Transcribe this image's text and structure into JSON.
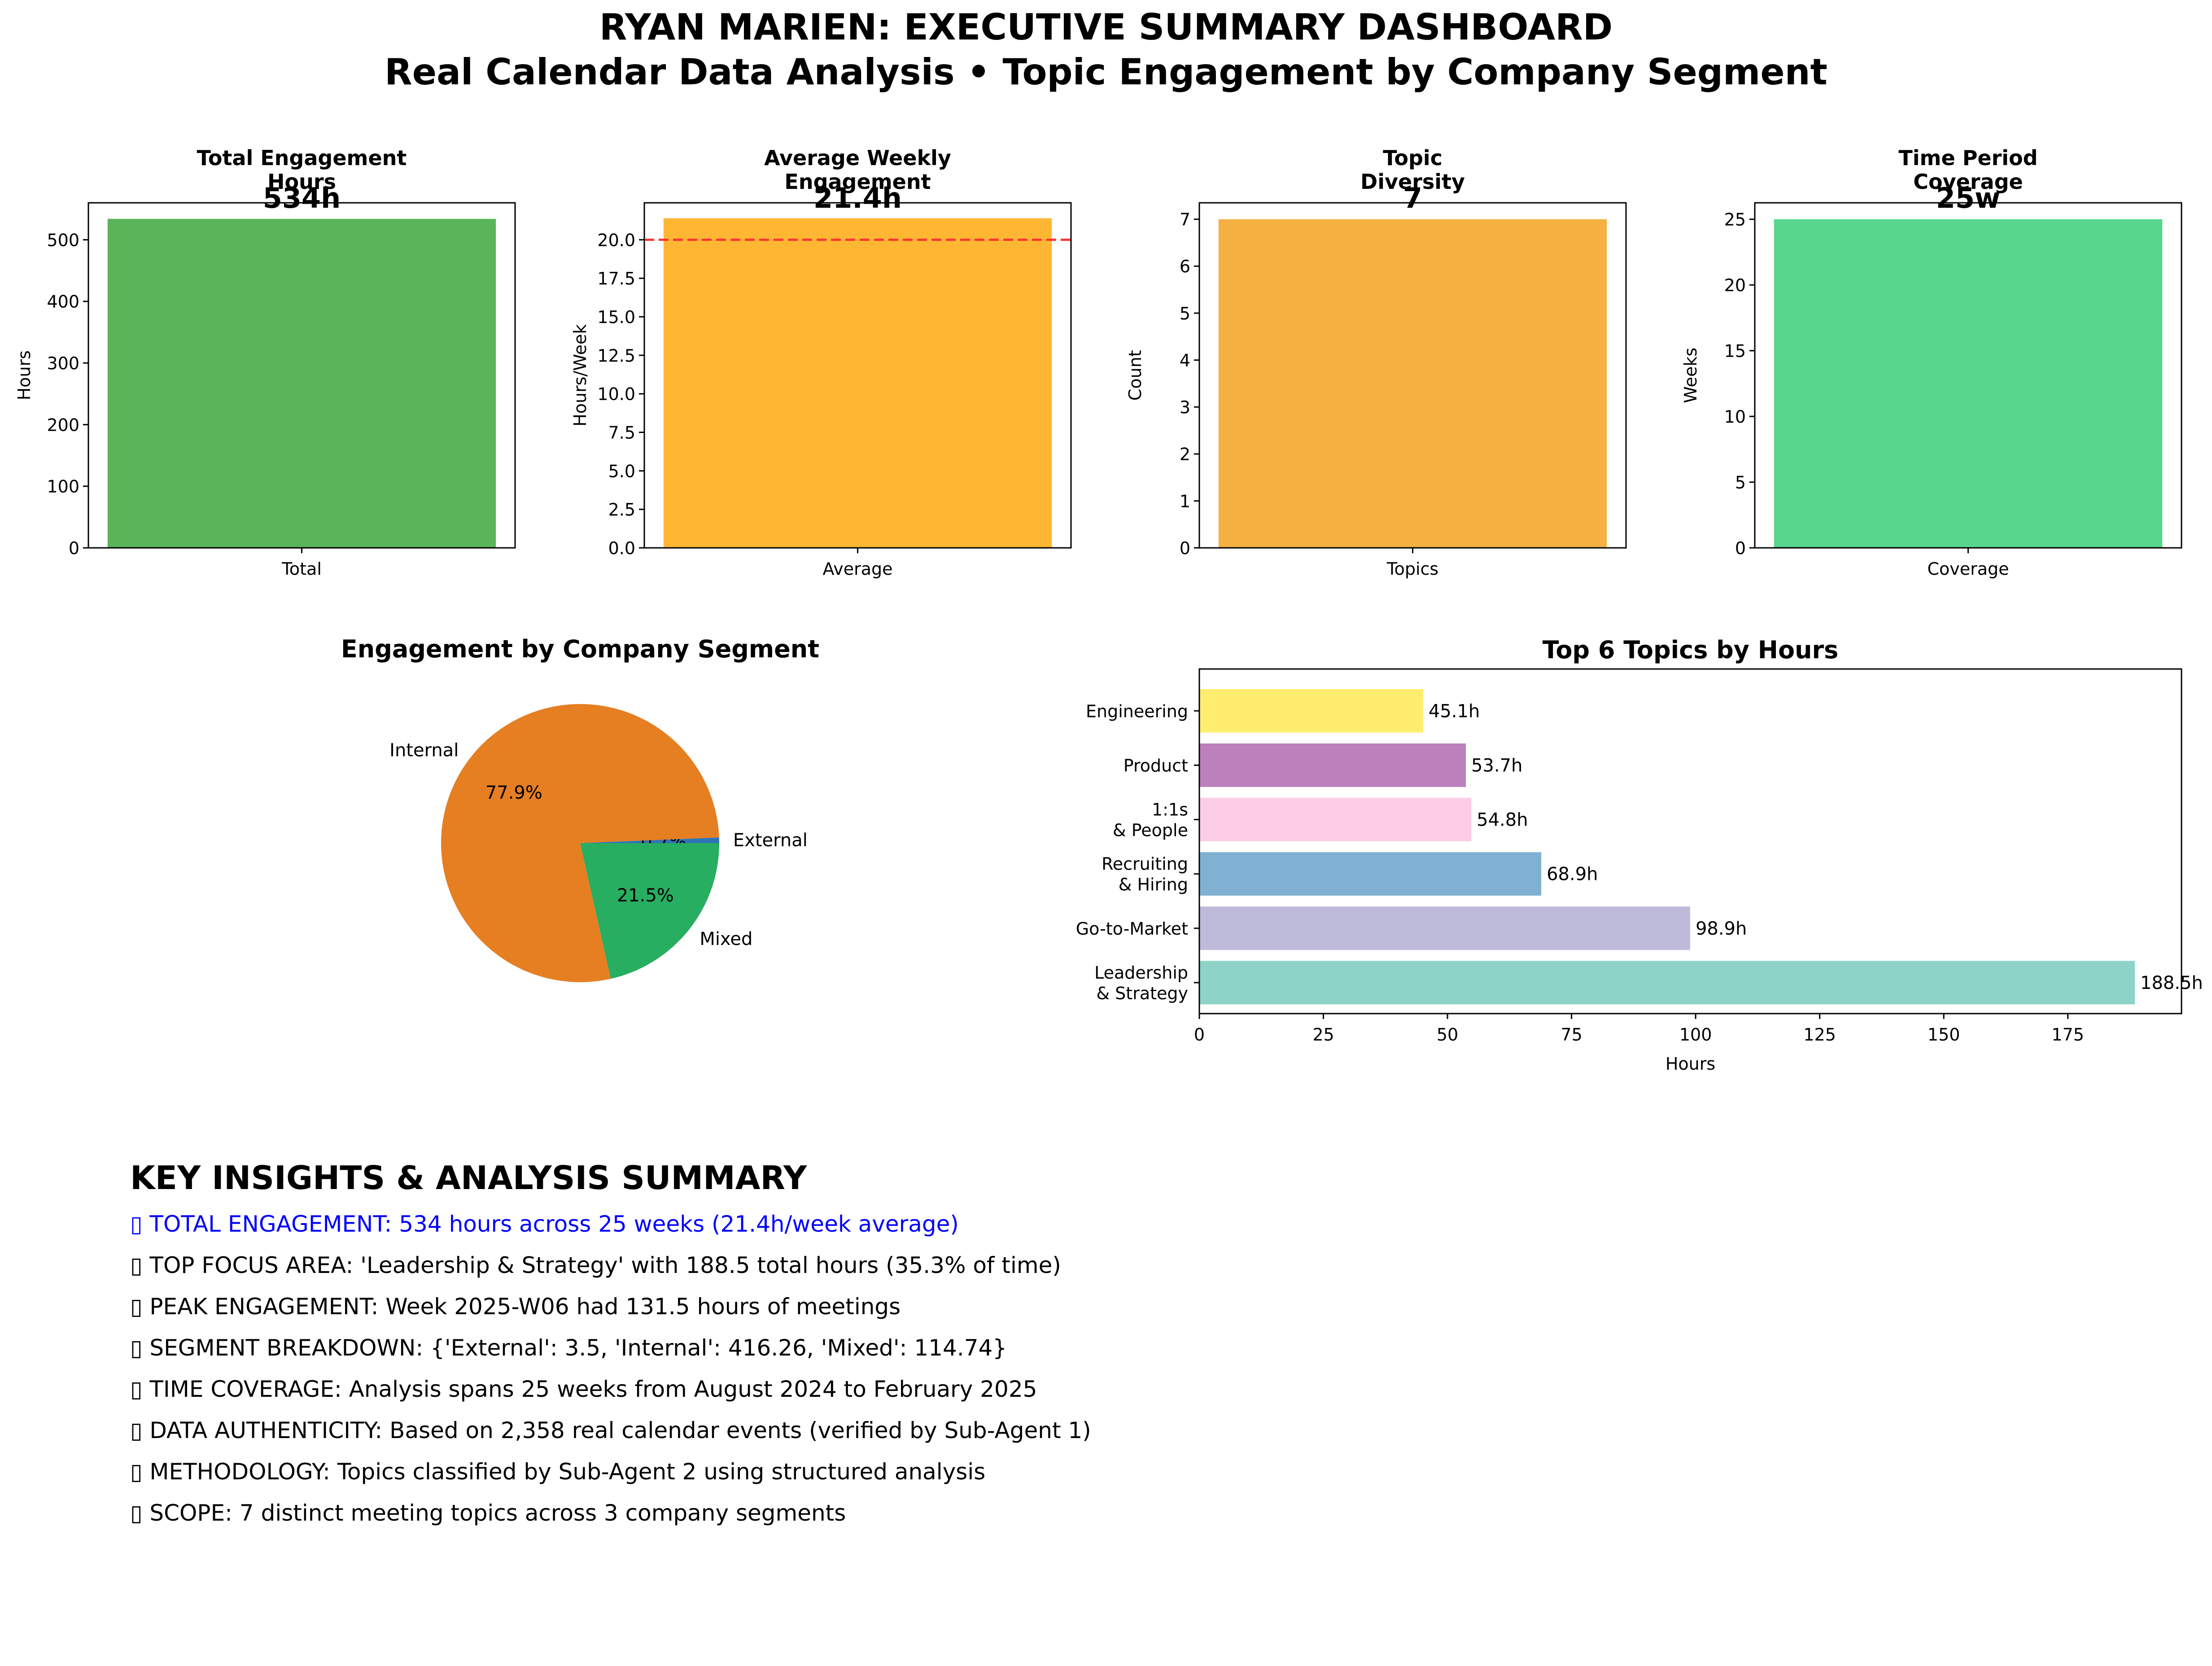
{
  "page": {
    "title_line1": "RYAN MARIEN: EXECUTIVE SUMMARY DASHBOARD",
    "title_line2": "Real Calendar Data Analysis • Topic Engagement by Company Segment"
  },
  "colors": {
    "total_bar": "#5ab55a",
    "average_bar": "#ffb733",
    "topics_bar": "#f5b142",
    "coverage_bar": "#58d68d",
    "reference_line": "#ff3333",
    "internal": "#e67e22",
    "mixed": "#27ae60",
    "external": "#2e75b6",
    "insight_highlight": "#0000ff"
  },
  "chart_data": [
    {
      "type": "bar",
      "title": [
        "Total Engagement",
        "Hours"
      ],
      "big_label": "534h",
      "categories": [
        "Total"
      ],
      "values": [
        534
      ],
      "ylabel": "Hours",
      "ylim": [
        0,
        560
      ],
      "yticks": [
        0,
        100,
        200,
        300,
        400,
        500
      ]
    },
    {
      "type": "bar",
      "title": [
        "Average Weekly",
        "Engagement"
      ],
      "big_label": "21.4h",
      "categories": [
        "Average"
      ],
      "values": [
        21.4
      ],
      "ylabel": "Hours/Week",
      "ylim": [
        0,
        22.4
      ],
      "yticks": [
        0.0,
        2.5,
        5.0,
        7.5,
        10.0,
        12.5,
        15.0,
        17.5,
        20.0
      ],
      "reference_line": 20
    },
    {
      "type": "bar",
      "title": [
        "Topic",
        "Diversity"
      ],
      "big_label": "7",
      "categories": [
        "Topics"
      ],
      "values": [
        7
      ],
      "ylabel": "Count",
      "ylim": [
        0,
        7.35
      ],
      "yticks": [
        0,
        1,
        2,
        3,
        4,
        5,
        6,
        7
      ]
    },
    {
      "type": "bar",
      "title": [
        "Time Period",
        "Coverage"
      ],
      "big_label": "25w",
      "categories": [
        "Coverage"
      ],
      "values": [
        25
      ],
      "ylabel": "Weeks",
      "ylim": [
        0,
        26.25
      ],
      "yticks": [
        0,
        5,
        10,
        15,
        20,
        25
      ]
    },
    {
      "type": "pie",
      "title": "Engagement by Company Segment",
      "slices": [
        {
          "label": "External",
          "value": 3.5,
          "pct": "0.7%"
        },
        {
          "label": "Internal",
          "value": 416.26,
          "pct": "77.9%"
        },
        {
          "label": "Mixed",
          "value": 114.74,
          "pct": "21.5%"
        }
      ]
    },
    {
      "type": "bar",
      "orientation": "horizontal",
      "title": "Top 6 Topics by Hours",
      "categories": [
        [
          "Leadership",
          "& Strategy"
        ],
        [
          "Go-to-Market"
        ],
        [
          "Recruiting",
          "& Hiring"
        ],
        [
          "1:1s",
          "& People"
        ],
        [
          "Product"
        ],
        [
          "Engineering"
        ]
      ],
      "values": [
        188.5,
        98.9,
        68.9,
        54.8,
        53.7,
        45.1
      ],
      "value_labels": [
        "188.5h",
        "98.9h",
        "68.9h",
        "54.8h",
        "53.7h",
        "45.1h"
      ],
      "colors": [
        "#8dd3c7",
        "#bebada",
        "#80b1d3",
        "#fccde5",
        "#bc80bd",
        "#ffed6f"
      ],
      "xlabel": "Hours",
      "xlim": [
        0,
        197.9
      ],
      "xticks": [
        0,
        25,
        50,
        75,
        100,
        125,
        150,
        175
      ]
    }
  ],
  "insights": {
    "heading": "KEY INSIGHTS & ANALYSIS SUMMARY",
    "items": [
      "▯ TOTAL ENGAGEMENT: 534 hours across 25 weeks (21.4h/week average)",
      "▯ TOP FOCUS AREA: 'Leadership & Strategy' with 188.5 total hours (35.3% of time)",
      "▯ PEAK ENGAGEMENT: Week 2025-W06 had 131.5 hours of meetings",
      "▯ SEGMENT BREAKDOWN: {'External': 3.5, 'Internal': 416.26, 'Mixed': 114.74}",
      "▯ TIME COVERAGE: Analysis spans 25 weeks from August 2024 to February 2025",
      "▯ DATA AUTHENTICITY: Based on 2,358 real calendar events (verified by Sub-Agent 1)",
      "▯ METHODOLOGY: Topics classified by Sub-Agent 2 using structured analysis",
      "▯ SCOPE: 7 distinct meeting topics across 3 company segments"
    ]
  }
}
